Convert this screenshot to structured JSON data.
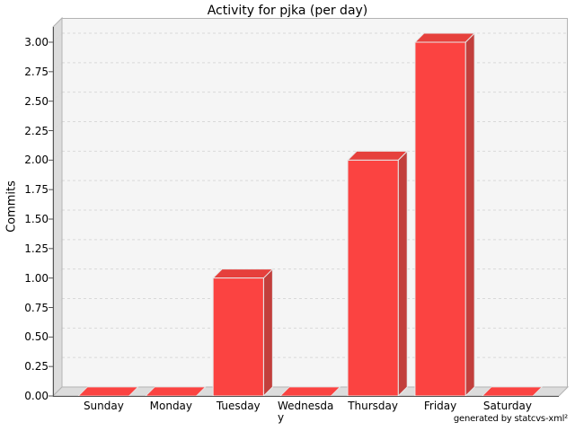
{
  "title": "Activity for pjka (per day)",
  "footer": "generated by statcvs-xml²",
  "chart_data": {
    "type": "bar",
    "style": "3d-bar",
    "title": "Activity for pjka (per day)",
    "xlabel": "",
    "ylabel": "Commits",
    "categories": [
      "Sunday",
      "Monday",
      "Tuesday",
      "Wednesday",
      "Thursday",
      "Friday",
      "Saturday"
    ],
    "category_display": [
      "Sunday",
      "Monday",
      "Tuesday",
      "Wednesda\ny",
      "Thursday",
      "Friday",
      "Saturday"
    ],
    "values": [
      0,
      0,
      1,
      0,
      2,
      3,
      0
    ],
    "ylim": [
      0.0,
      3.0
    ],
    "ytick_step": 0.25,
    "ytick_labels": [
      "0.00",
      "0.25",
      "0.50",
      "0.75",
      "1.00",
      "1.25",
      "1.50",
      "1.75",
      "2.00",
      "2.25",
      "2.50",
      "2.75",
      "3.00"
    ],
    "grid": true,
    "grid_style": "dashed",
    "legend": false,
    "colors": {
      "bar_front": "#fb4341",
      "bar_top": "#e6403c",
      "bar_side": "#c23f3c",
      "bar_outline": "#e8e8e8",
      "plot_bg": "#f5f5f5",
      "wall": "#dcdcdc",
      "wall_border": "#b3b3b3",
      "gridline": "#d9d9d9",
      "axis": "#555555",
      "page_bg": "#ffffff"
    }
  }
}
